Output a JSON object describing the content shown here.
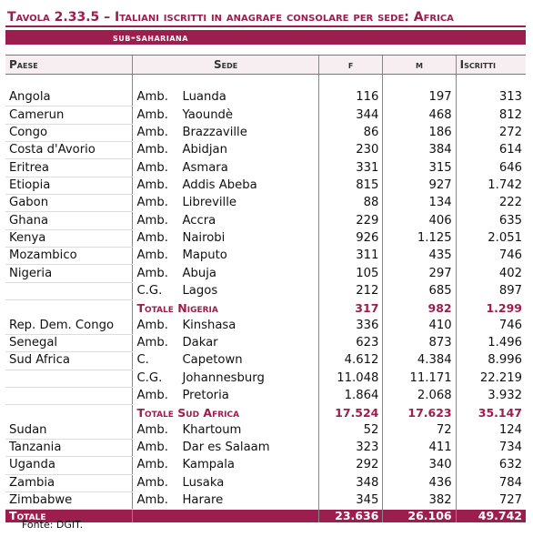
{
  "header": {
    "title": "Tavola 2.33.5 – Italiani iscritti in anagrafe consolare per sede: Africa",
    "subtitle": "sub-sahariana"
  },
  "table": {
    "columns": [
      "Paese",
      "Sede",
      "f",
      "m",
      "Iscritti"
    ],
    "rows": [
      {
        "paese": "Angola",
        "tipo": "Amb.",
        "sede": "Luanda",
        "f": "116",
        "m": "197",
        "iscritti": "313"
      },
      {
        "paese": "Camerun",
        "tipo": "Amb.",
        "sede": "Yaoundè",
        "f": "344",
        "m": "468",
        "iscritti": "812"
      },
      {
        "paese": "Congo",
        "tipo": "Amb.",
        "sede": "Brazzaville",
        "f": "86",
        "m": "186",
        "iscritti": "272"
      },
      {
        "paese": "Costa d'Avorio",
        "tipo": "Amb.",
        "sede": "Abidjan",
        "f": "230",
        "m": "384",
        "iscritti": "614"
      },
      {
        "paese": "Eritrea",
        "tipo": "Amb.",
        "sede": "Asmara",
        "f": "331",
        "m": "315",
        "iscritti": "646"
      },
      {
        "paese": "Etiopia",
        "tipo": "Amb.",
        "sede": "Addis Abeba",
        "f": "815",
        "m": "927",
        "iscritti": "1.742"
      },
      {
        "paese": "Gabon",
        "tipo": "Amb.",
        "sede": "Libreville",
        "f": "88",
        "m": "134",
        "iscritti": "222"
      },
      {
        "paese": "Ghana",
        "tipo": "Amb.",
        "sede": "Accra",
        "f": "229",
        "m": "406",
        "iscritti": "635"
      },
      {
        "paese": "Kenya",
        "tipo": "Amb.",
        "sede": "Nairobi",
        "f": "926",
        "m": "1.125",
        "iscritti": "2.051"
      },
      {
        "paese": "Mozambico",
        "tipo": "Amb.",
        "sede": "Maputo",
        "f": "311",
        "m": "435",
        "iscritti": "746"
      },
      {
        "paese": "Nigeria",
        "tipo": "Amb.",
        "sede": "Abuja",
        "f": "105",
        "m": "297",
        "iscritti": "402"
      },
      {
        "tipo": "C.G.",
        "sede": "Lagos",
        "f": "212",
        "m": "685",
        "iscritti": "897"
      },
      {
        "label": "Totale Nigeria",
        "f": "317",
        "m": "982",
        "iscritti": "1.299"
      },
      {
        "paese": "Rep. Dem. Congo",
        "tipo": "Amb.",
        "sede": "Kinshasa",
        "f": "336",
        "m": "410",
        "iscritti": "746"
      },
      {
        "paese": "Senegal",
        "tipo": "Amb.",
        "sede": "Dakar",
        "f": "623",
        "m": "873",
        "iscritti": "1.496"
      },
      {
        "paese": "Sud Africa",
        "tipo": "C.",
        "sede": "Capetown",
        "f": "4.612",
        "m": "4.384",
        "iscritti": "8.996"
      },
      {
        "tipo": "C.G.",
        "sede": "Johannesburg",
        "f": "11.048",
        "m": "11.171",
        "iscritti": "22.219"
      },
      {
        "tipo": "Amb.",
        "sede": "Pretoria",
        "f": "1.864",
        "m": "2.068",
        "iscritti": "3.932"
      },
      {
        "label": "Totale Sud Africa",
        "f": "17.524",
        "m": "17.623",
        "iscritti": "35.147"
      },
      {
        "paese": "Sudan",
        "tipo": "Amb.",
        "sede": "Khartoum",
        "f": "52",
        "m": "72",
        "iscritti": "124"
      },
      {
        "paese": "Tanzania",
        "tipo": "Amb.",
        "sede": "Dar es Salaam",
        "f": "323",
        "m": "411",
        "iscritti": "734"
      },
      {
        "paese": "Uganda",
        "tipo": "Amb.",
        "sede": "Kampala",
        "f": "292",
        "m": "340",
        "iscritti": "632"
      },
      {
        "paese": "Zambia",
        "tipo": "Amb.",
        "sede": "Lusaka",
        "f": "348",
        "m": "436",
        "iscritti": "784"
      },
      {
        "paese": "Zimbabwe",
        "tipo": "Amb.",
        "sede": "Harare",
        "f": "345",
        "m": "382",
        "iscritti": "727"
      }
    ],
    "total": {
      "label": "Totale",
      "f": "23.636",
      "m": "26.106",
      "iscritti": "49.742"
    }
  },
  "footer": {
    "source": "Fonte: DGIT."
  }
}
